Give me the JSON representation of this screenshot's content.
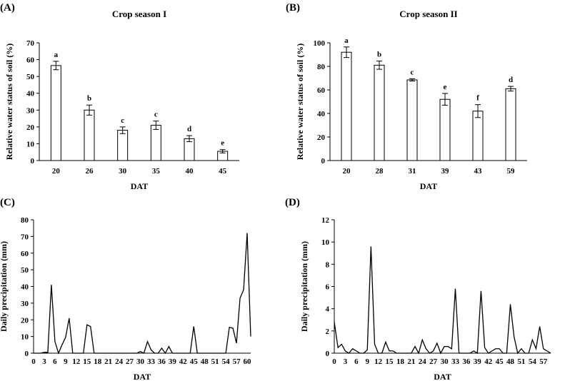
{
  "chart_data": [
    {
      "panel": "(A)",
      "type": "bar",
      "title": "Crop season I",
      "xlabel": "DAT",
      "ylabel": "Relative water status of soil (%)",
      "categories": [
        "20",
        "26",
        "30",
        "35",
        "40",
        "45"
      ],
      "values": [
        56.5,
        30,
        18,
        21,
        13,
        5.5
      ],
      "errors": [
        2.5,
        3,
        2,
        2.5,
        1.8,
        1
      ],
      "labels": [
        "a",
        "b",
        "c",
        "c",
        "d",
        "e"
      ],
      "ylim": [
        0,
        70
      ],
      "yticks": [
        "0",
        "10",
        "20",
        "30",
        "40",
        "50",
        "60",
        "70"
      ]
    },
    {
      "panel": "(B)",
      "type": "bar",
      "title": "Crop season II",
      "xlabel": "DAT",
      "ylabel": "Relative water status of soil (%)",
      "categories": [
        "20",
        "28",
        "31",
        "39",
        "43",
        "59"
      ],
      "values": [
        92,
        81,
        68.5,
        52,
        42,
        61
      ],
      "errors": [
        4.5,
        3.5,
        1,
        5,
        5.5,
        2
      ],
      "labels": [
        "a",
        "b",
        "c",
        "e",
        "f",
        "d"
      ],
      "ylim": [
        0,
        100
      ],
      "yticks": [
        "0",
        "20",
        "40",
        "60",
        "80",
        "100"
      ]
    },
    {
      "panel": "(C)",
      "type": "line",
      "title": "",
      "xlabel": "DAT",
      "ylabel": "Daily precipitation (mm)",
      "x": [
        0,
        1,
        2,
        3,
        4,
        5,
        6,
        7,
        8,
        9,
        10,
        11,
        12,
        13,
        14,
        15,
        16,
        17,
        18,
        19,
        20,
        21,
        22,
        23,
        24,
        25,
        26,
        27,
        28,
        29,
        30,
        31,
        32,
        33,
        34,
        35,
        36,
        37,
        38,
        39,
        40,
        41,
        42,
        43,
        44,
        45,
        46,
        47,
        48,
        49,
        50,
        51,
        52,
        53,
        54,
        55,
        56,
        57,
        58,
        59,
        60,
        61
      ],
      "y": [
        0,
        0,
        0,
        0.5,
        0.5,
        41,
        7,
        0,
        5,
        9.5,
        21,
        0,
        0,
        0,
        0,
        17,
        16,
        0,
        0,
        0,
        0,
        0,
        0,
        0,
        0,
        0,
        0,
        0,
        0,
        0,
        1,
        0,
        7,
        2,
        0,
        0,
        3,
        0,
        4,
        0,
        0,
        0,
        0,
        0,
        0,
        16,
        0,
        0,
        0,
        0,
        0,
        0,
        0,
        0,
        0,
        15.5,
        15,
        6,
        33,
        38,
        72,
        10
      ],
      "xlim": [
        0,
        61
      ],
      "ylim": [
        0,
        80
      ],
      "xticks": [
        "0",
        "3",
        "6",
        "9",
        "12",
        "15",
        "18",
        "21",
        "24",
        "27",
        "30",
        "33",
        "36",
        "39",
        "42",
        "45",
        "48",
        "51",
        "54",
        "57",
        "60"
      ],
      "yticks": [
        "0",
        "10",
        "20",
        "30",
        "40",
        "50",
        "60",
        "70",
        "80"
      ]
    },
    {
      "panel": "(D)",
      "type": "line",
      "title": "",
      "xlabel": "DAT",
      "ylabel": "Daily precipitation (mm)",
      "x": [
        0,
        1,
        2,
        3,
        4,
        5,
        6,
        7,
        8,
        9,
        10,
        11,
        12,
        13,
        14,
        15,
        16,
        17,
        18,
        19,
        20,
        21,
        22,
        23,
        24,
        25,
        26,
        27,
        28,
        29,
        30,
        31,
        32,
        33,
        34,
        35,
        36,
        37,
        38,
        39,
        40,
        41,
        42,
        43,
        44,
        45,
        46,
        47,
        48,
        49,
        50,
        51,
        52,
        53,
        54,
        55,
        56,
        57,
        58,
        59
      ],
      "y": [
        2.8,
        0.5,
        0.8,
        0.2,
        0,
        0.4,
        0.2,
        0,
        0,
        0.3,
        9.6,
        0.8,
        0,
        0,
        1,
        0.2,
        0.2,
        0,
        0,
        0,
        0,
        0,
        0.6,
        0,
        1.2,
        0.4,
        0,
        0.2,
        0.9,
        0,
        0.6,
        0.6,
        0.4,
        5.8,
        0,
        0,
        0,
        0,
        0.2,
        0,
        5.6,
        0.5,
        0,
        0.2,
        0.4,
        0.4,
        0,
        0,
        4.4,
        1.5,
        0,
        0.4,
        0,
        0,
        1.2,
        0.4,
        2.4,
        0.4,
        0.2,
        0
      ],
      "xlim": [
        0,
        59
      ],
      "ylim": [
        0,
        12
      ],
      "xticks": [
        "0",
        "3",
        "6",
        "9",
        "12",
        "15",
        "18",
        "21",
        "24",
        "27",
        "30",
        "33",
        "36",
        "39",
        "42",
        "45",
        "48",
        "51",
        "54",
        "57"
      ],
      "yticks": [
        "0",
        "2",
        "4",
        "6",
        "8",
        "10",
        "12"
      ]
    }
  ]
}
